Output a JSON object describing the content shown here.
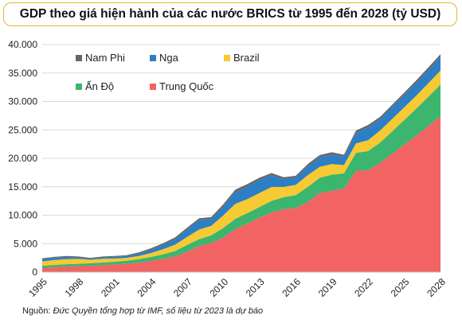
{
  "chart_data": {
    "type": "area",
    "title": "GDP theo giá hiện hành của các nước BRICS từ 1995 đến 2028 (tỷ USD)",
    "xlabel": "",
    "ylabel": "",
    "x": [
      1995,
      1996,
      1997,
      1998,
      1999,
      2000,
      2001,
      2002,
      2003,
      2004,
      2005,
      2006,
      2007,
      2008,
      2009,
      2010,
      2011,
      2012,
      2013,
      2014,
      2015,
      2016,
      2017,
      2018,
      2019,
      2020,
      2021,
      2022,
      2023,
      2024,
      2025,
      2026,
      2027,
      2028
    ],
    "x_ticks": [
      "1995",
      "1998",
      "2001",
      "2004",
      "2007",
      "2010",
      "2013",
      "2016",
      "2019",
      "2022",
      "2025",
      "2028"
    ],
    "y_ticks": [
      "0",
      "5.000",
      "10.000",
      "15.000",
      "20.000",
      "25.000",
      "30.000",
      "35.000",
      "40.000"
    ],
    "ylim": [
      0,
      40000
    ],
    "stacked": true,
    "grid": "horizontal",
    "legend_position": "top-left",
    "series": [
      {
        "name": "Trung Quốc",
        "color": "#f26363",
        "values": [
          734,
          864,
          962,
          1029,
          1094,
          1211,
          1339,
          1471,
          1660,
          1955,
          2286,
          2752,
          3550,
          4594,
          5101,
          6087,
          7552,
          8532,
          9570,
          10476,
          11062,
          11233,
          12310,
          13895,
          14280,
          14688,
          17820,
          17880,
          19200,
          20800,
          22400,
          24000,
          25700,
          27400
        ]
      },
      {
        "name": "Ấn Độ",
        "color": "#3cb56e",
        "values": [
          366,
          400,
          423,
          428,
          467,
          468,
          485,
          515,
          608,
          709,
          820,
          940,
          1217,
          1199,
          1342,
          1676,
          1823,
          1828,
          1857,
          2039,
          2104,
          2295,
          2651,
          2702,
          2836,
          2672,
          3150,
          3390,
          3570,
          3940,
          4340,
          4740,
          5140,
          5580
        ]
      },
      {
        "name": "Brazil",
        "color": "#f7c932",
        "values": [
          770,
          850,
          883,
          864,
          599,
          655,
          559,
          509,
          558,
          669,
          892,
          1107,
          1397,
          1696,
          1667,
          2209,
          2616,
          2465,
          2473,
          2456,
          1802,
          1796,
          2063,
          1917,
          1873,
          1448,
          1650,
          1920,
          2130,
          2190,
          2240,
          2300,
          2370,
          2440
        ]
      },
      {
        "name": "Nga",
        "color": "#2c7fc5",
        "values": [
          395,
          391,
          404,
          271,
          196,
          260,
          307,
          345,
          430,
          591,
          764,
          990,
          1300,
          1661,
          1223,
          1525,
          2046,
          2208,
          2292,
          2059,
          1363,
          1277,
          1574,
          1657,
          1693,
          1489,
          1840,
          2260,
          2020,
          2100,
          2180,
          2260,
          2340,
          2420
        ]
      },
      {
        "name": "Nam Phi",
        "color": "#666666",
        "values": [
          171,
          163,
          168,
          152,
          151,
          151,
          135,
          129,
          197,
          255,
          288,
          303,
          333,
          316,
          330,
          417,
          458,
          434,
          401,
          381,
          347,
          323,
          382,
          405,
          389,
          338,
          419,
          406,
          378,
          390,
          400,
          420,
          440,
          460
        ]
      }
    ],
    "legend_order": [
      "Nam Phi",
      "Nga",
      "Brazil",
      "Ấn Độ",
      "Trung Quốc"
    ]
  },
  "source": {
    "label": "Nguồn: ",
    "text": "Đức Quyền tổng hợp từ IMF, số liệu từ 2023 là dự báo"
  }
}
